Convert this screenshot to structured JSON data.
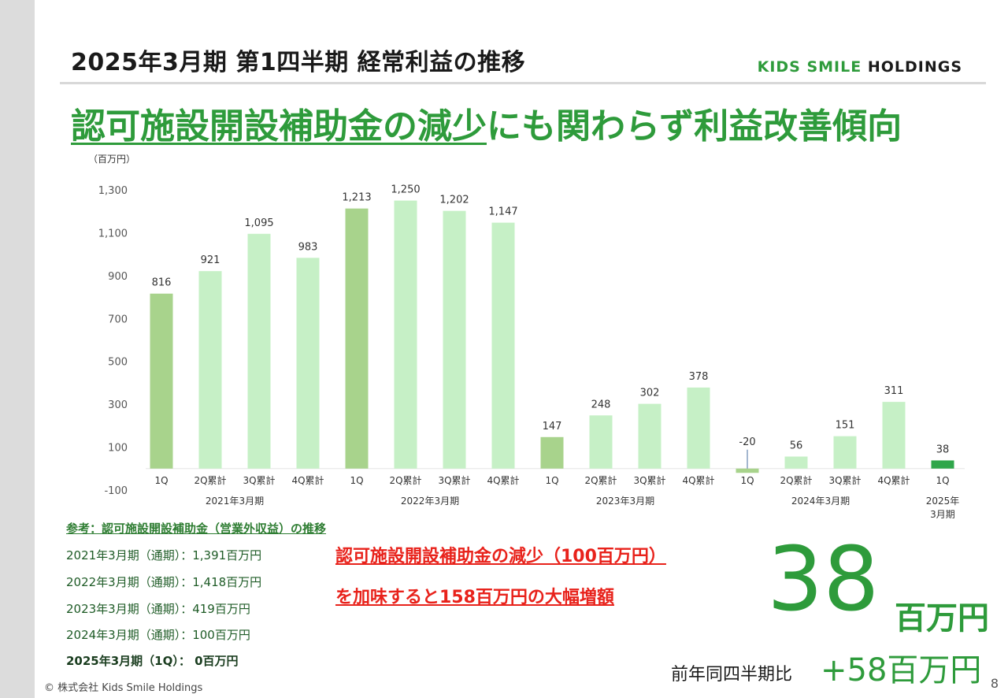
{
  "header": {
    "title": "2025年3月期 第1四半期 経常利益の推移",
    "brand_kids": "KIDS SMILE",
    "brand_rest": " HOLDINGS"
  },
  "headline": {
    "part1": "認可施設開設補助金の減少",
    "part2": "にも関わらず利益改善傾向"
  },
  "chart_data": {
    "type": "bar",
    "unit_label": "（百万円）",
    "ylim": [
      -100,
      1300
    ],
    "yticks": [
      -100,
      100,
      300,
      500,
      700,
      900,
      1100,
      1300
    ],
    "ytick_labels": [
      "-100",
      "100",
      "300",
      "500",
      "700",
      "900",
      "1,100",
      "1,300"
    ],
    "categories": [
      "1Q",
      "2Q累計",
      "3Q累計",
      "4Q累計",
      "1Q",
      "2Q累計",
      "3Q累計",
      "4Q累計",
      "1Q",
      "2Q累計",
      "3Q累計",
      "4Q累計",
      "1Q",
      "2Q累計",
      "3Q累計",
      "4Q累計",
      "1Q"
    ],
    "values": [
      816,
      921,
      1095,
      983,
      1213,
      1250,
      1202,
      1147,
      147,
      248,
      302,
      378,
      -20,
      56,
      151,
      311,
      38
    ],
    "value_labels": [
      "816",
      "921",
      "1,095",
      "983",
      "1,213",
      "1,250",
      "1,202",
      "1,147",
      "147",
      "248",
      "302",
      "378",
      "-20",
      "56",
      "151",
      "311",
      "38"
    ],
    "groups": [
      {
        "label": "2021年3月期",
        "start": 0,
        "end": 3
      },
      {
        "label": "2022年3月期",
        "start": 4,
        "end": 7
      },
      {
        "label": "2023年3月期",
        "start": 8,
        "end": 11
      },
      {
        "label": "2024年3月期",
        "start": 12,
        "end": 15
      },
      {
        "label": "2025年\n3月期",
        "start": 16,
        "end": 16
      }
    ],
    "colors": {
      "q1": "#a8d38c",
      "cumulative": "#c6f0c6",
      "current": "#2fa64a"
    }
  },
  "reference": {
    "title": "参考：認可施設開設補助金（営業外収益）の推移",
    "items": [
      "2021年3月期（通期）：1,391百万円",
      "2022年3月期（通期）：1,418百万円",
      "2023年3月期（通期）：419百万円",
      "2024年3月期（通期）：100百万円",
      "2025年3月期（1Q）： 0百万円"
    ]
  },
  "note": {
    "line1": "認可施設開設補助金の減少（100百万円）",
    "line2": "を加味すると158百万円の大幅増額"
  },
  "result": {
    "value": "38",
    "unit": "百万円",
    "yoy_label": "前年同四半期比",
    "yoy_value": "+58百万円"
  },
  "footer": {
    "copyright": "© 株式会社 Kids Smile Holdings",
    "page": "8"
  }
}
